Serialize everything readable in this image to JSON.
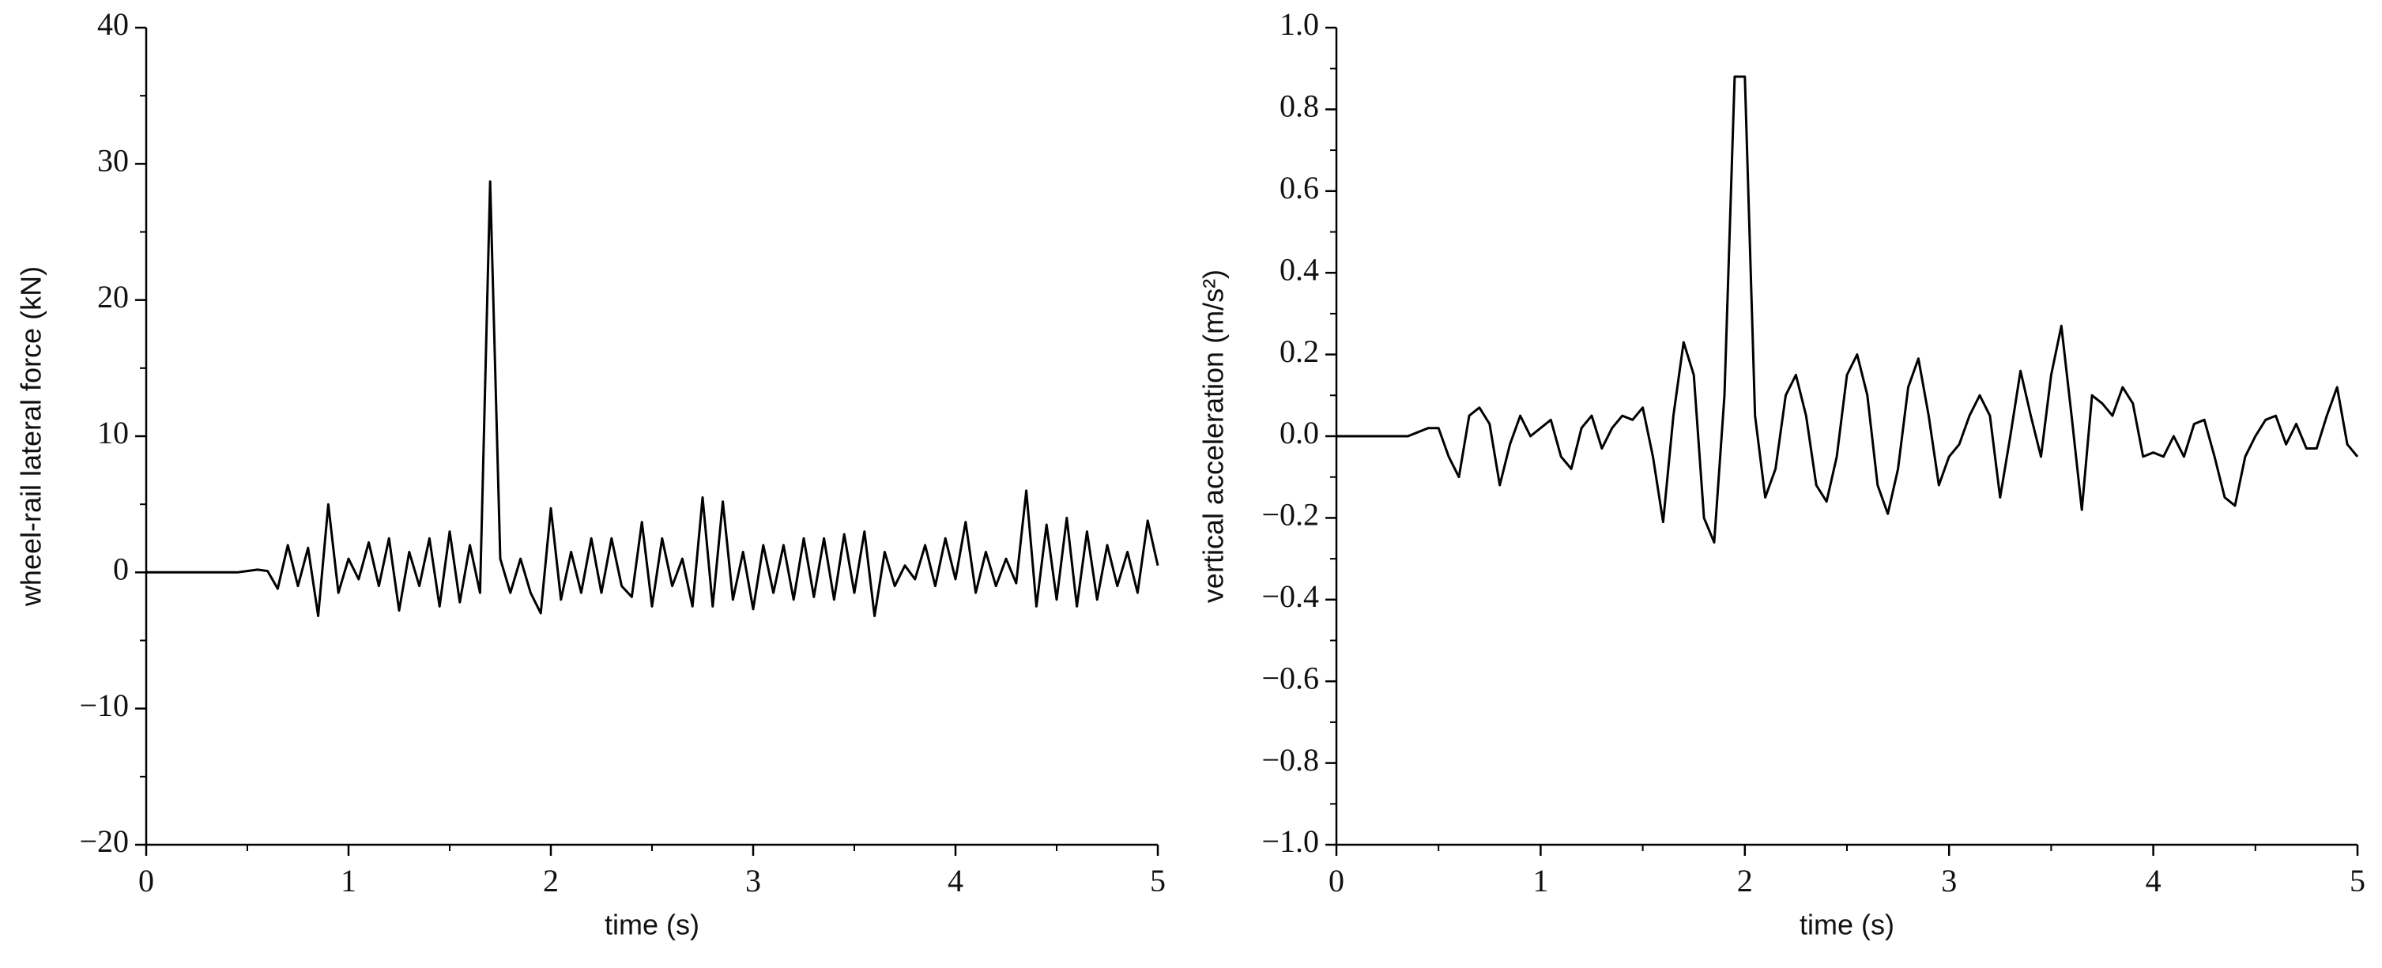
{
  "chart_data": [
    {
      "type": "line",
      "x_label": "time (s)",
      "y_label": "wheel-rail lateral force (kN)",
      "color": "#000000",
      "x": [
        0,
        0.05,
        0.1,
        0.15,
        0.2,
        0.25,
        0.3,
        0.35,
        0.4,
        0.45,
        0.5,
        0.55,
        0.6,
        0.65,
        0.7,
        0.75,
        0.8,
        0.85,
        0.9,
        0.95,
        1,
        1.05,
        1.1,
        1.15,
        1.2,
        1.25,
        1.3,
        1.35,
        1.4,
        1.45,
        1.5,
        1.55,
        1.6,
        1.65,
        1.7,
        1.75,
        1.8,
        1.85,
        1.9,
        1.95,
        2,
        2.05,
        2.1,
        2.15,
        2.2,
        2.25,
        2.3,
        2.35,
        2.4,
        2.45,
        2.5,
        2.55,
        2.6,
        2.65,
        2.7,
        2.75,
        2.8,
        2.85,
        2.9,
        2.95,
        3,
        3.05,
        3.1,
        3.15,
        3.2,
        3.25,
        3.3,
        3.35,
        3.4,
        3.45,
        3.5,
        3.55,
        3.6,
        3.65,
        3.7,
        3.75,
        3.8,
        3.85,
        3.9,
        3.95,
        4,
        4.05,
        4.1,
        4.15,
        4.2,
        4.25,
        4.3,
        4.35,
        4.4,
        4.45,
        4.5,
        4.55,
        4.6,
        4.65,
        4.7,
        4.75,
        4.8,
        4.85,
        4.9,
        4.95,
        5
      ],
      "values": [
        0,
        0,
        0,
        0,
        0,
        0,
        0,
        0,
        0,
        0,
        0.1,
        0.2,
        0.1,
        -1.2,
        2,
        -1,
        1.8,
        -3.2,
        5,
        -1.5,
        1,
        -0.5,
        2.2,
        -1,
        2.5,
        -2.8,
        1.5,
        -1,
        2.5,
        -2.5,
        3,
        -2.2,
        2,
        -1.5,
        28.7,
        1,
        -1.5,
        1,
        -1.5,
        -3,
        4.7,
        -2,
        1.5,
        -1.5,
        2.5,
        -1.5,
        2.5,
        -1,
        -1.8,
        3.7,
        -2.5,
        2.5,
        -1,
        1,
        -2.5,
        5.5,
        -2.5,
        5.2,
        -2,
        1.5,
        -2.7,
        2,
        -1.5,
        2,
        -2,
        2.5,
        -1.8,
        2.5,
        -2,
        2.8,
        -1.5,
        3,
        -3.2,
        1.5,
        -1,
        0.5,
        -0.5,
        2,
        -1,
        2.5,
        -0.5,
        3.7,
        -1.5,
        1.5,
        -1,
        1,
        -0.8,
        6,
        -2.5,
        3.5,
        -2,
        4,
        -2.5,
        3,
        -2,
        2,
        -1,
        1.5,
        -1.5,
        3.8,
        0.5
      ],
      "xlim": [
        0,
        5
      ],
      "xticks": [
        0,
        1,
        2,
        3,
        4,
        5
      ],
      "ylim": [
        -20,
        40
      ],
      "yticks": [
        {
          "value": -20,
          "label": "−20"
        },
        {
          "value": -10,
          "label": "−10"
        },
        0,
        10,
        20,
        30,
        40
      ]
    },
    {
      "type": "line",
      "x_label": "time (s)",
      "y_label": "vertical acceleration (m/s²)",
      "color": "#000000",
      "x": [
        0,
        0.05,
        0.1,
        0.15,
        0.2,
        0.25,
        0.3,
        0.35,
        0.4,
        0.45,
        0.5,
        0.55,
        0.6,
        0.65,
        0.7,
        0.75,
        0.8,
        0.85,
        0.9,
        0.95,
        1,
        1.05,
        1.1,
        1.15,
        1.2,
        1.25,
        1.3,
        1.35,
        1.4,
        1.45,
        1.5,
        1.55,
        1.6,
        1.65,
        1.7,
        1.75,
        1.8,
        1.85,
        1.9,
        1.95,
        2,
        2.05,
        2.1,
        2.15,
        2.2,
        2.25,
        2.3,
        2.35,
        2.4,
        2.45,
        2.5,
        2.55,
        2.6,
        2.65,
        2.7,
        2.75,
        2.8,
        2.85,
        2.9,
        2.95,
        3,
        3.05,
        3.1,
        3.15,
        3.2,
        3.25,
        3.3,
        3.35,
        3.4,
        3.45,
        3.5,
        3.55,
        3.6,
        3.65,
        3.7,
        3.75,
        3.8,
        3.85,
        3.9,
        3.95,
        4,
        4.05,
        4.1,
        4.15,
        4.2,
        4.25,
        4.3,
        4.35,
        4.4,
        4.45,
        4.5,
        4.55,
        4.6,
        4.65,
        4.7,
        4.75,
        4.8,
        4.85,
        4.9,
        4.95,
        5
      ],
      "values": [
        0,
        0,
        0,
        0,
        0,
        0,
        0,
        0,
        0.01,
        0.02,
        0.02,
        -0.05,
        -0.1,
        0.05,
        0.07,
        0.03,
        -0.12,
        -0.02,
        0.05,
        0.0,
        0.02,
        0.04,
        -0.05,
        -0.08,
        0.02,
        0.05,
        -0.03,
        0.02,
        0.05,
        0.04,
        0.07,
        -0.05,
        -0.21,
        0.05,
        0.23,
        0.15,
        -0.2,
        -0.26,
        0.1,
        0.88,
        0.88,
        0.05,
        -0.15,
        -0.08,
        0.1,
        0.15,
        0.05,
        -0.12,
        -0.16,
        -0.05,
        0.15,
        0.2,
        0.1,
        -0.12,
        -0.19,
        -0.08,
        0.12,
        0.19,
        0.05,
        -0.12,
        -0.05,
        -0.02,
        0.05,
        0.1,
        0.05,
        -0.15,
        0.0,
        0.16,
        0.05,
        -0.05,
        0.15,
        0.27,
        0.05,
        -0.18,
        0.1,
        0.08,
        0.05,
        0.12,
        0.08,
        -0.05,
        -0.04,
        -0.05,
        0.0,
        -0.05,
        0.03,
        0.04,
        -0.05,
        -0.15,
        -0.17,
        -0.05,
        0.0,
        0.04,
        0.05,
        -0.02,
        0.03,
        -0.03,
        -0.03,
        0.05,
        0.12,
        -0.02,
        -0.05
      ],
      "xlim": [
        0,
        5
      ],
      "xticks": [
        0,
        1,
        2,
        3,
        4,
        5
      ],
      "ylim": [
        -1,
        1
      ],
      "yticks": [
        {
          "value": -1,
          "label": "−1.0"
        },
        {
          "value": -0.8,
          "label": "−0.8"
        },
        {
          "value": -0.6,
          "label": "−0.6"
        },
        {
          "value": -0.4,
          "label": "−0.4"
        },
        {
          "value": -0.2,
          "label": "−0.2"
        },
        {
          "value": 0,
          "label": "0.0"
        },
        {
          "value": 0.2,
          "label": "0.2"
        },
        {
          "value": 0.4,
          "label": "0.4"
        },
        {
          "value": 0.6,
          "label": "0.6"
        },
        {
          "value": 0.8,
          "label": "0.8"
        },
        {
          "value": 1,
          "label": "1.0"
        }
      ]
    }
  ]
}
